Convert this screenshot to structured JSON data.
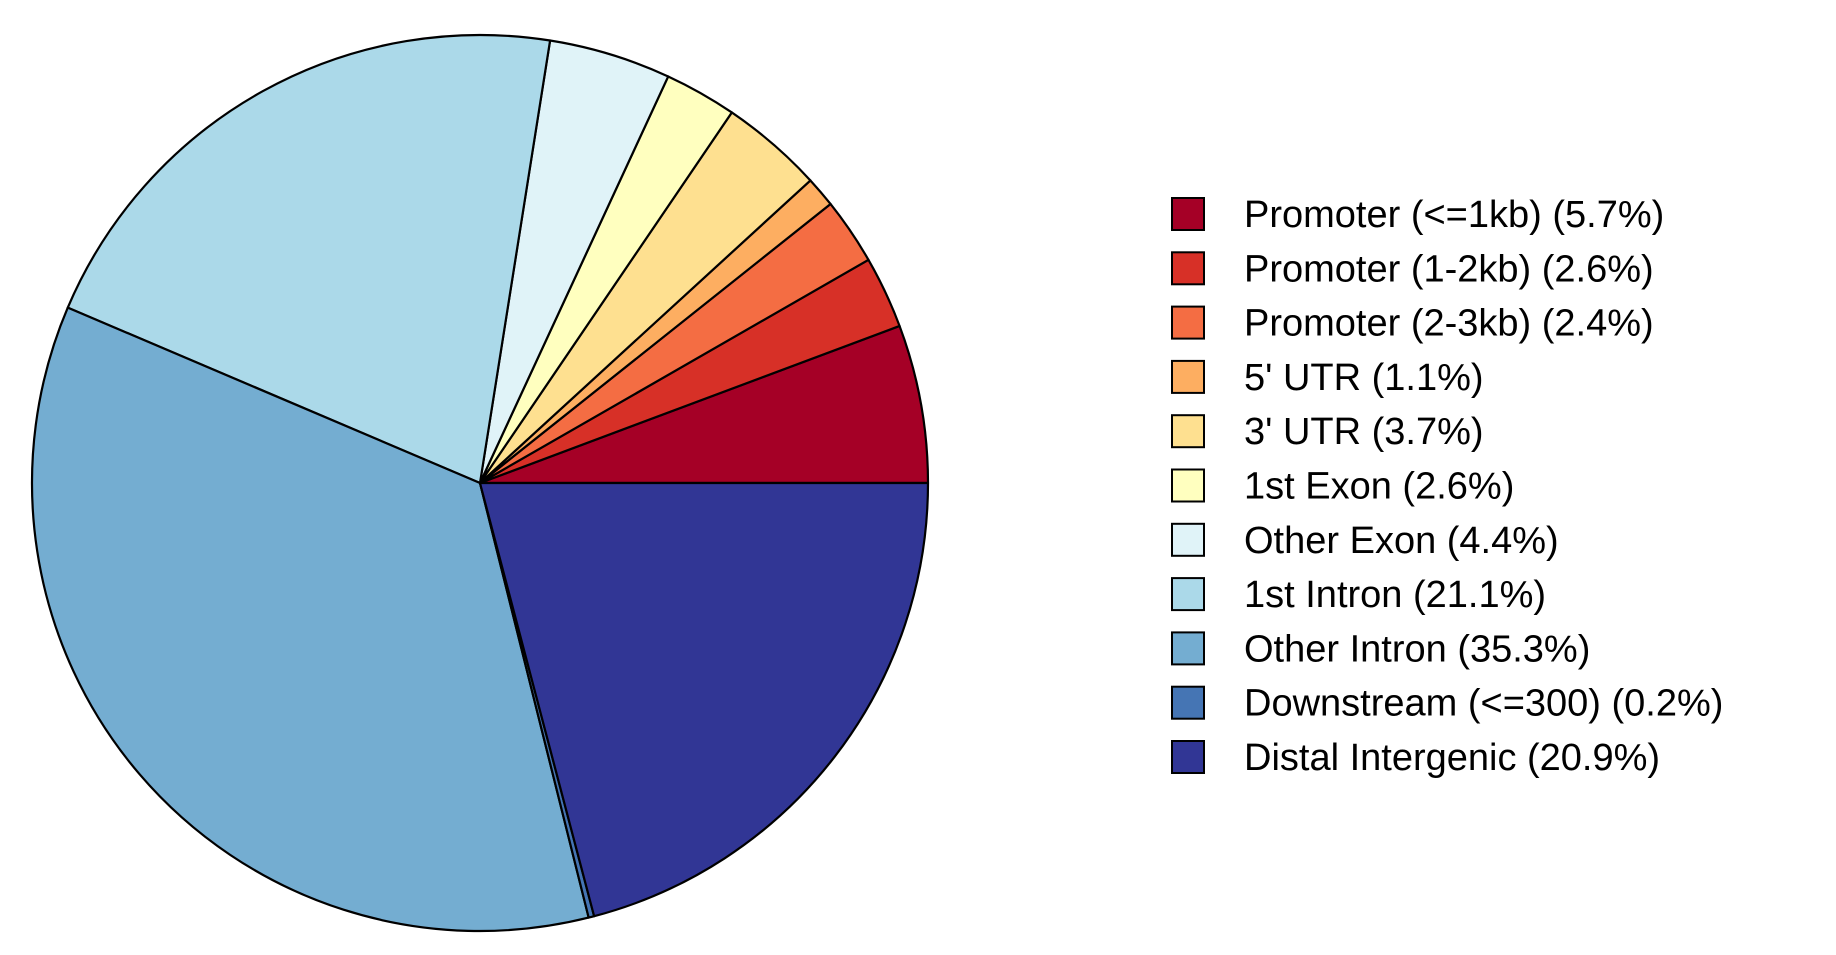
{
  "chart_data": {
    "type": "pie",
    "title": "",
    "legend_position": "right",
    "slices": [
      {
        "label": "Promoter (<=1kb) (5.7%)",
        "value": 5.7,
        "color": "#A50026"
      },
      {
        "label": "Promoter (1-2kb) (2.6%)",
        "value": 2.6,
        "color": "#D73027"
      },
      {
        "label": "Promoter (2-3kb) (2.4%)",
        "value": 2.4,
        "color": "#F46D43"
      },
      {
        "label": "5' UTR (1.1%)",
        "value": 1.1,
        "color": "#FDAE61"
      },
      {
        "label": "3' UTR (3.7%)",
        "value": 3.7,
        "color": "#FEE090"
      },
      {
        "label": "1st Exon (2.6%)",
        "value": 2.6,
        "color": "#FFFFBF"
      },
      {
        "label": "Other Exon (4.4%)",
        "value": 4.4,
        "color": "#E0F3F8"
      },
      {
        "label": "1st Intron (21.1%)",
        "value": 21.1,
        "color": "#ABD9E9"
      },
      {
        "label": "Other Intron (35.3%)",
        "value": 35.3,
        "color": "#74ADD1"
      },
      {
        "label": "Downstream (<=300) (0.2%)",
        "value": 0.2,
        "color": "#4575B4"
      },
      {
        "label": "Distal Intergenic (20.9%)",
        "value": 20.9,
        "color": "#313695"
      }
    ]
  }
}
